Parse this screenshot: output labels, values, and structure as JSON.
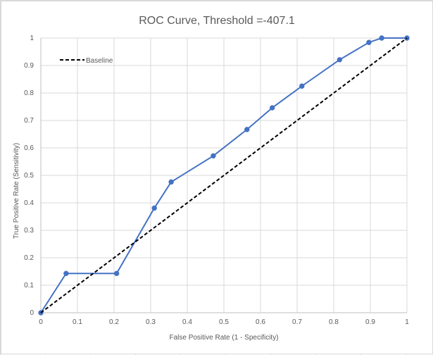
{
  "chart_data": {
    "type": "scatter",
    "title": "ROC Curve, Threshold =-407.1",
    "xlabel": "False Positive Rate (1  - Specificity)",
    "ylabel": "True Positive Rate (Sensitivity)",
    "xlim": [
      0,
      1
    ],
    "ylim": [
      0,
      1
    ],
    "xticks": [
      "0",
      "0.1",
      "0.2",
      "0.3",
      "0.4",
      "0.5",
      "0.6",
      "0.7",
      "0.8",
      "0.9",
      "1"
    ],
    "yticks": [
      "0",
      "0.1",
      "0.2",
      "0.3",
      "0.4",
      "0.5",
      "0.6",
      "0.7",
      "0.8",
      "0.9",
      "1"
    ],
    "grid": true,
    "legend_position": "top-left",
    "series": [
      {
        "name": "",
        "style": "line-markers",
        "color": "#4472c4",
        "x": [
          0,
          0.069,
          0.207,
          0.31,
          0.356,
          0.471,
          0.563,
          0.632,
          0.713,
          0.816,
          0.896,
          0.931,
          1
        ],
        "y": [
          0,
          0.143,
          0.143,
          0.381,
          0.476,
          0.571,
          0.667,
          0.746,
          0.825,
          0.921,
          0.984,
          1,
          1
        ]
      },
      {
        "name": "Baseline",
        "style": "dashed",
        "color": "#000000",
        "x": [
          0,
          1
        ],
        "y": [
          0,
          1
        ]
      }
    ]
  }
}
